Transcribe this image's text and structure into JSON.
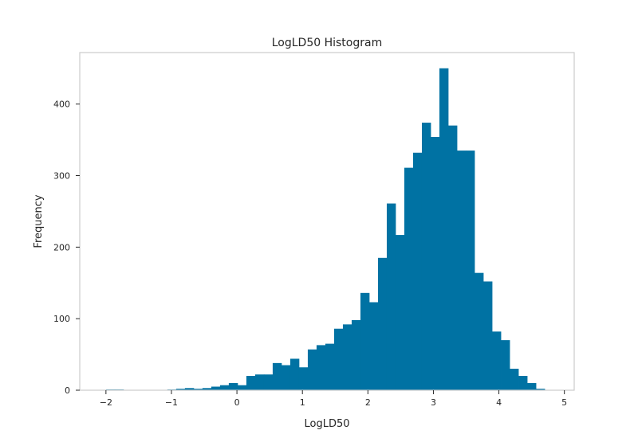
{
  "chart_data": {
    "type": "histogram",
    "title": "LogLD50 Histogram",
    "xlabel": "LogLD50",
    "ylabel": "Frequency",
    "xlim": [
      -2.4,
      5.15
    ],
    "ylim": [
      0,
      472
    ],
    "xticks": [
      -2,
      -1,
      0,
      1,
      2,
      3,
      4,
      5
    ],
    "xtick_labels": [
      "−2",
      "−1",
      "0",
      "1",
      "2",
      "3",
      "4",
      "5"
    ],
    "yticks": [
      0,
      100,
      200,
      300,
      400
    ],
    "ytick_labels": [
      "0",
      "100",
      "200",
      "300",
      "400"
    ],
    "bar_color": "#0072a3",
    "grid": false,
    "bin_start": -2.0,
    "bin_width": 0.134,
    "counts": [
      1,
      1,
      0,
      0,
      0,
      0,
      0,
      1,
      2,
      3,
      2,
      3,
      5,
      7,
      10,
      7,
      20,
      22,
      22,
      38,
      35,
      44,
      32,
      57,
      63,
      65,
      86,
      92,
      98,
      136,
      123,
      185,
      261,
      217,
      311,
      332,
      374,
      354,
      450,
      370,
      335,
      335,
      164,
      152,
      82,
      70,
      30,
      20,
      10,
      2
    ]
  }
}
